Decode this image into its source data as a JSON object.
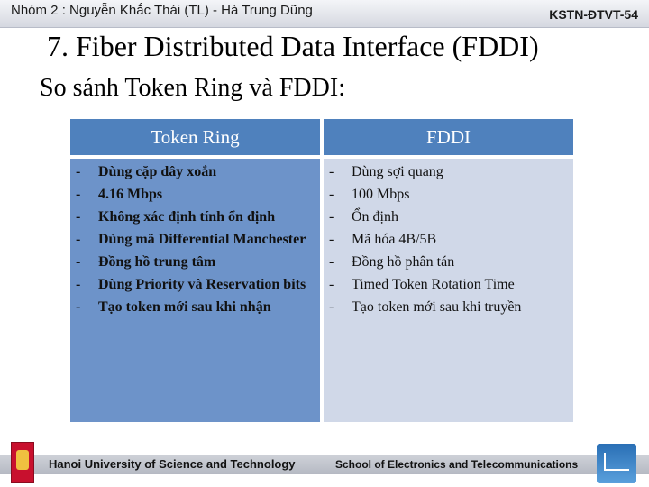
{
  "header": {
    "left_text": "Nhóm 2 : Nguyễn Khắc Thái (TL) - Hà Trung Dũng",
    "right_text": "KSTN-ĐTVT-54"
  },
  "slide": {
    "title": "7. Fiber Distributed Data Interface (FDDI)",
    "subtitle": "So sánh Token Ring và  FDDI:"
  },
  "table": {
    "headers": [
      "Token Ring",
      "FDDI"
    ],
    "bullet": "-",
    "token_ring_items": [
      "Dùng cặp dây xoắn",
      "4.16 Mbps",
      "Không xác định tính ổn định",
      "Dùng mã Differential Manchester",
      "Đồng hồ trung tâm",
      "Dùng Priority và Reservation bits",
      "Tạo token mới sau khi nhận"
    ],
    "fddi_items": [
      "Dùng sợi quang",
      "100 Mbps",
      "Ổn định",
      "Mã hóa 4B/5B",
      "Đồng hồ phân tán",
      "Timed Token Rotation Time",
      "Tạo token mới sau khi truyền"
    ]
  },
  "footer": {
    "left_text": "Hanoi University of Science and Technology",
    "right_text": "School of Electronics and Telecommunications",
    "left_logo_icon": "university-logo-icon",
    "right_logo_icon": "school-logo-icon"
  }
}
